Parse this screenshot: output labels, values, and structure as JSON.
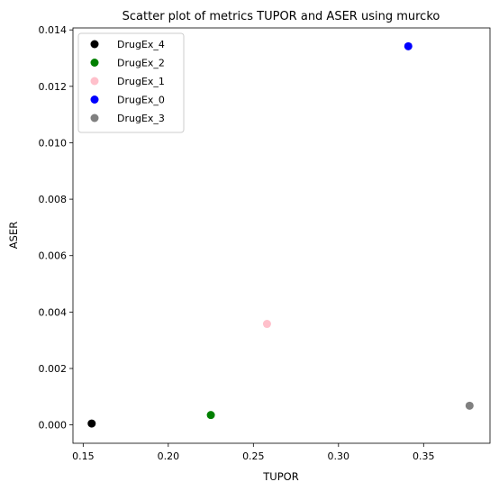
{
  "chart_data": {
    "type": "scatter",
    "title": "Scatter plot of metrics TUPOR and ASER using murcko",
    "xlabel": "TUPOR",
    "ylabel": "ASER",
    "xlim": [
      0.144,
      0.389
    ],
    "ylim": [
      -0.00065,
      0.01407
    ],
    "xticks": [
      0.15,
      0.2,
      0.25,
      0.3,
      0.35
    ],
    "xtick_labels": [
      "0.15",
      "0.20",
      "0.25",
      "0.30",
      "0.35"
    ],
    "yticks": [
      0.0,
      0.002,
      0.004,
      0.006,
      0.008,
      0.01,
      0.012,
      0.014
    ],
    "ytick_labels": [
      "0.000",
      "0.002",
      "0.004",
      "0.006",
      "0.008",
      "0.010",
      "0.012",
      "0.014"
    ],
    "grid": false,
    "legend_position": "top-left",
    "series": [
      {
        "name": "DrugEx_4",
        "color": "#000000",
        "x": [
          0.155
        ],
        "y": [
          5e-05
        ]
      },
      {
        "name": "DrugEx_2",
        "color": "#008000",
        "x": [
          0.225
        ],
        "y": [
          0.00035
        ]
      },
      {
        "name": "DrugEx_1",
        "color": "#ffc0cb",
        "x": [
          0.258
        ],
        "y": [
          0.00358
        ]
      },
      {
        "name": "DrugEx_0",
        "color": "#0000ff",
        "x": [
          0.341
        ],
        "y": [
          0.01342
        ]
      },
      {
        "name": "DrugEx_3",
        "color": "#808080",
        "x": [
          0.377
        ],
        "y": [
          0.00068
        ]
      }
    ]
  }
}
